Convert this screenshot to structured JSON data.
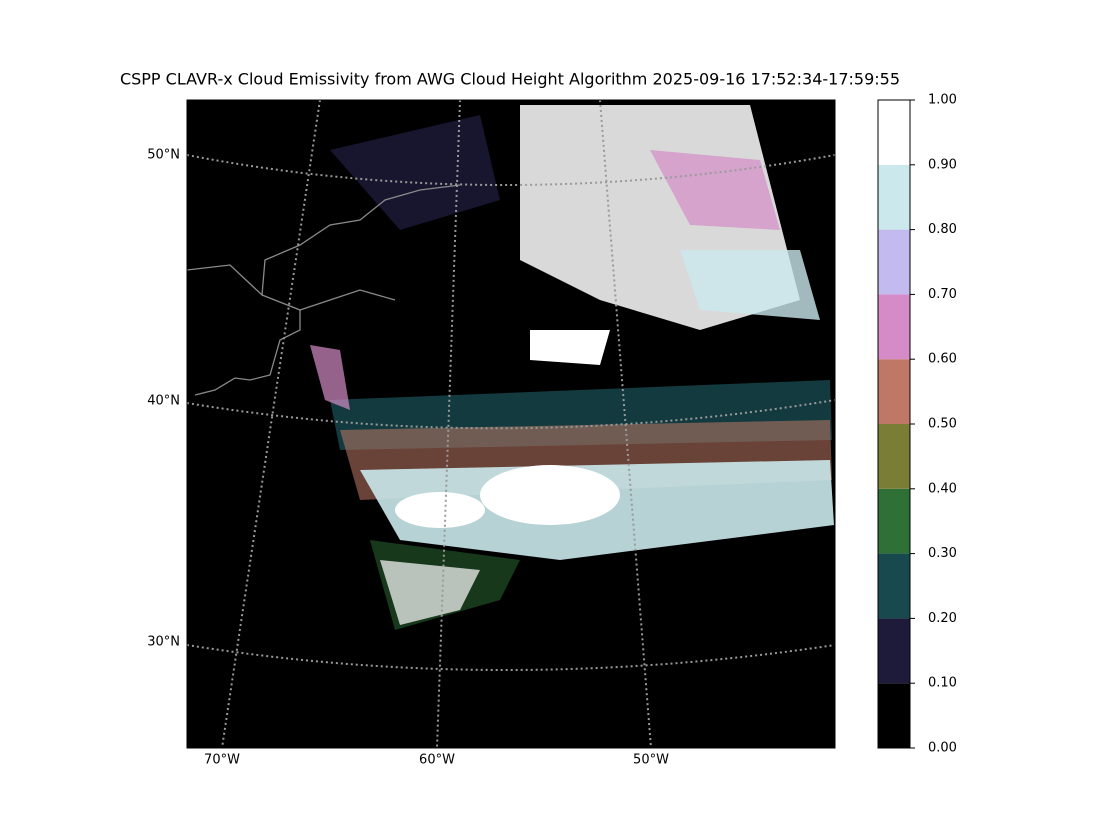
{
  "title": "CSPP CLAVR-x Cloud Emissivity from AWG Cloud Height Algorithm 2025-09-16 17:52:34-17:59:55",
  "map": {
    "lat_labels": [
      "50°N",
      "40°N",
      "30°N"
    ],
    "lon_labels": [
      "70°W",
      "60°W",
      "50°W"
    ]
  },
  "colorbar": {
    "lim": [
      0,
      1
    ],
    "ticks": [
      {
        "value": 0,
        "label": "0.00"
      },
      {
        "value": 0.1,
        "label": "0.10"
      },
      {
        "value": 0.2,
        "label": "0.20"
      },
      {
        "value": 0.3,
        "label": "0.30"
      },
      {
        "value": 0.4,
        "label": "0.40"
      },
      {
        "value": 0.5,
        "label": "0.50"
      },
      {
        "value": 0.6,
        "label": "0.60"
      },
      {
        "value": 0.7,
        "label": "0.70"
      },
      {
        "value": 0.8,
        "label": "0.80"
      },
      {
        "value": 0.9,
        "label": "0.90"
      },
      {
        "value": 1,
        "label": "1.00"
      }
    ],
    "colors": [
      "#000000",
      "#1e1a3a",
      "#17494f",
      "#2e7036",
      "#7a7d35",
      "#c07866",
      "#d48bc7",
      "#c3bbf0",
      "#cbe9ec",
      "#ffffff"
    ]
  }
}
